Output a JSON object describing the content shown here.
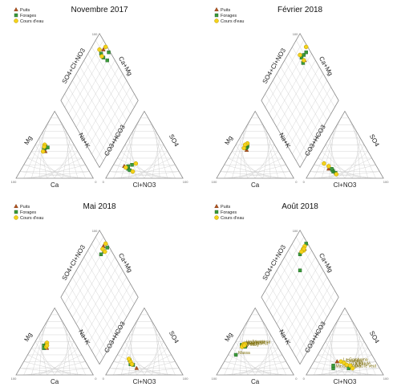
{
  "colors": {
    "puits": "#b5541c",
    "forages": "#3a9a3a",
    "cours_eau": "#f4d21a",
    "cours_eau_stroke": "#b89a00",
    "grid": "#c9c9c9",
    "frame": "#8a8a8a",
    "label_text": "#7a6a00"
  },
  "legend": {
    "puits": "Puits",
    "forages": "Forages",
    "cours_eau": "Cours d'eau"
  },
  "axis_labels": {
    "ca": "Ca",
    "mg": "Mg",
    "na_k": "Na+K",
    "cl_no3": "Cl+NO3",
    "so4": "SO4",
    "co3_hco3": "CO3+HCO3",
    "so4_cl_no3": "SO4+Cl+NO3",
    "ca_mg": "Ca+Mg"
  },
  "tick_100": "100",
  "tick_0": "0",
  "chart_data": [
    {
      "type": "scatter",
      "subtype": "piper-diagram",
      "title": "Novembre 2017",
      "series": [
        {
          "name": "Puits",
          "points": [
            {
              "ca": 42,
              "mg": 40,
              "na_k": 18,
              "cl_no3": 15,
              "so4": 18,
              "hco3": 67,
              "diamond": [
                0.55,
                0.88
              ]
            }
          ]
        },
        {
          "name": "Forages",
          "points": [
            {
              "ca": 40,
              "mg": 45,
              "na_k": 15,
              "cl_no3": 22,
              "so4": 14,
              "hco3": 64,
              "diamond": [
                0.55,
                0.82
              ]
            },
            {
              "ca": 38,
              "mg": 48,
              "na_k": 14,
              "cl_no3": 25,
              "so4": 12,
              "hco3": 63,
              "diamond": [
                0.52,
                0.85
              ]
            },
            {
              "ca": 36,
              "mg": 46,
              "na_k": 18,
              "cl_no3": 20,
              "so4": 18,
              "hco3": 62,
              "diamond": [
                0.6,
                0.8
              ]
            },
            {
              "ca": 42,
              "mg": 44,
              "na_k": 14,
              "cl_no3": 24,
              "so4": 20,
              "hco3": 56,
              "diamond": [
                0.62,
                0.86
              ]
            }
          ]
        },
        {
          "name": "Cours d'eau",
          "points": [
            {
              "ca": 38,
              "mg": 50,
              "na_k": 12,
              "cl_no3": 28,
              "so4": 22,
              "hco3": 50,
              "diamond": [
                0.58,
                0.9
              ]
            },
            {
              "ca": 45,
              "mg": 40,
              "na_k": 15,
              "cl_no3": 30,
              "so4": 10,
              "hco3": 60,
              "diamond": [
                0.5,
                0.88
              ]
            },
            {
              "ca": 40,
              "mg": 47,
              "na_k": 13,
              "cl_no3": 18,
              "so4": 16,
              "hco3": 66,
              "diamond": [
                0.53,
                0.83
              ]
            }
          ]
        }
      ]
    },
    {
      "type": "scatter",
      "subtype": "piper-diagram",
      "title": "Février 2018",
      "series": [
        {
          "name": "Puits",
          "points": [
            {
              "ca": 40,
              "mg": 42,
              "na_k": 18,
              "cl_no3": 22,
              "so4": 14,
              "hco3": 64,
              "diamond": [
                0.56,
                0.8
              ]
            }
          ]
        },
        {
          "name": "Forages",
          "points": [
            {
              "ca": 38,
              "mg": 46,
              "na_k": 16,
              "cl_no3": 30,
              "so4": 10,
              "hco3": 60,
              "diamond": [
                0.55,
                0.84
              ]
            },
            {
              "ca": 36,
              "mg": 48,
              "na_k": 16,
              "cl_no3": 34,
              "so4": 8,
              "hco3": 58,
              "diamond": [
                0.52,
                0.82
              ]
            },
            {
              "ca": 40,
              "mg": 45,
              "na_k": 15,
              "cl_no3": 28,
              "so4": 12,
              "hco3": 60,
              "diamond": [
                0.58,
                0.86
              ]
            },
            {
              "ca": 35,
              "mg": 50,
              "na_k": 15,
              "cl_no3": 26,
              "so4": 14,
              "hco3": 60,
              "diamond": [
                0.54,
                0.78
              ]
            }
          ]
        },
        {
          "name": "Cours d'eau",
          "points": [
            {
              "ca": 42,
              "mg": 45,
              "na_k": 13,
              "cl_no3": 12,
              "so4": 22,
              "hco3": 66,
              "diamond": [
                0.58,
                0.9
              ]
            },
            {
              "ca": 34,
              "mg": 52,
              "na_k": 14,
              "cl_no3": 20,
              "so4": 18,
              "hco3": 62,
              "diamond": [
                0.55,
                0.8
              ]
            },
            {
              "ca": 38,
              "mg": 50,
              "na_k": 12,
              "cl_no3": 36,
              "so4": 6,
              "hco3": 58,
              "diamond": [
                0.5,
                0.84
              ]
            }
          ]
        }
      ]
    },
    {
      "type": "scatter",
      "subtype": "piper-diagram",
      "title": "Mai 2018",
      "series": [
        {
          "name": "Puits",
          "points": [
            {
              "ca": 40,
              "mg": 40,
              "na_k": 20,
              "cl_no3": 35,
              "so4": 10,
              "hco3": 55,
              "diamond": [
                0.55,
                0.88
              ]
            }
          ]
        },
        {
          "name": "Forages",
          "points": [
            {
              "ca": 42,
              "mg": 44,
              "na_k": 14,
              "cl_no3": 28,
              "so4": 15,
              "hco3": 57,
              "diamond": [
                0.56,
                0.84
              ]
            },
            {
              "ca": 38,
              "mg": 46,
              "na_k": 16,
              "cl_no3": 24,
              "so4": 16,
              "hco3": 60,
              "diamond": [
                0.52,
                0.82
              ]
            },
            {
              "ca": 44,
              "mg": 40,
              "na_k": 16,
              "cl_no3": 20,
              "so4": 22,
              "hco3": 58,
              "diamond": [
                0.6,
                0.87
              ]
            }
          ]
        },
        {
          "name": "Cours d'eau",
          "points": [
            {
              "ca": 36,
              "mg": 48,
              "na_k": 16,
              "cl_no3": 22,
              "so4": 20,
              "hco3": 58,
              "diamond": [
                0.58,
                0.9
              ]
            },
            {
              "ca": 40,
              "mg": 42,
              "na_k": 18,
              "cl_no3": 26,
              "so4": 16,
              "hco3": 58,
              "diamond": [
                0.54,
                0.86
              ]
            },
            {
              "ca": 38,
              "mg": 44,
              "na_k": 18,
              "cl_no3": 18,
              "so4": 24,
              "hco3": 58,
              "diamond": [
                0.57,
                0.84
              ]
            }
          ]
        }
      ]
    },
    {
      "type": "scatter",
      "subtype": "piper-diagram",
      "title": "Août 2018",
      "series": [
        {
          "name": "Puits",
          "points": [
            {
              "ca": 40,
              "mg": 44,
              "na_k": 16,
              "cl_no3": 30,
              "so4": 20,
              "hco3": 50,
              "diamond": [
                0.56,
                0.86
              ]
            }
          ]
        },
        {
          "name": "Forages",
          "points": [
            {
              "ca": 60,
              "mg": 30,
              "na_k": 10,
              "cl_no3": 30,
              "so4": 10,
              "hco3": 60,
              "diamond": [
                0.5,
                0.7
              ],
              "label": "Massa"
            },
            {
              "ca": 45,
              "mg": 45,
              "na_k": 10,
              "cl_no3": 50,
              "so4": 10,
              "hco3": 40,
              "diamond": [
                0.5,
                0.82
              ],
              "label": "Ingha"
            },
            {
              "ca": 42,
              "mg": 42,
              "na_k": 16,
              "cl_no3": 28,
              "so4": 14,
              "hco3": 58,
              "diamond": [
                0.58,
                0.9
              ]
            }
          ]
        },
        {
          "name": "Cours d'eau",
          "points": [
            {
              "ca": 42,
              "mg": 46,
              "na_k": 12,
              "cl_no3": 35,
              "so4": 20,
              "hco3": 45,
              "diamond": [
                0.55,
                0.85
              ],
              "label": "La Gomborna"
            },
            {
              "ca": 44,
              "mg": 44,
              "na_k": 12,
              "cl_no3": 40,
              "so4": 18,
              "hco3": 42,
              "diamond": [
                0.54,
                0.86
              ],
              "label": "Djoumba"
            },
            {
              "ca": 46,
              "mg": 42,
              "na_k": 12,
              "cl_no3": 45,
              "so4": 15,
              "hco3": 40,
              "diamond": [
                0.52,
                0.84
              ],
              "label": "La Mary"
            },
            {
              "ca": 40,
              "mg": 46,
              "na_k": 14,
              "cl_no3": 50,
              "so4": 14,
              "hco3": 36,
              "diamond": [
                0.56,
                0.88
              ],
              "label": "La Mandé"
            },
            {
              "ca": 42,
              "mg": 44,
              "na_k": 14,
              "cl_no3": 55,
              "so4": 10,
              "hco3": 35,
              "diamond": [
                0.55,
                0.86
              ],
              "label": "Dieu le veut"
            }
          ]
        }
      ]
    }
  ]
}
